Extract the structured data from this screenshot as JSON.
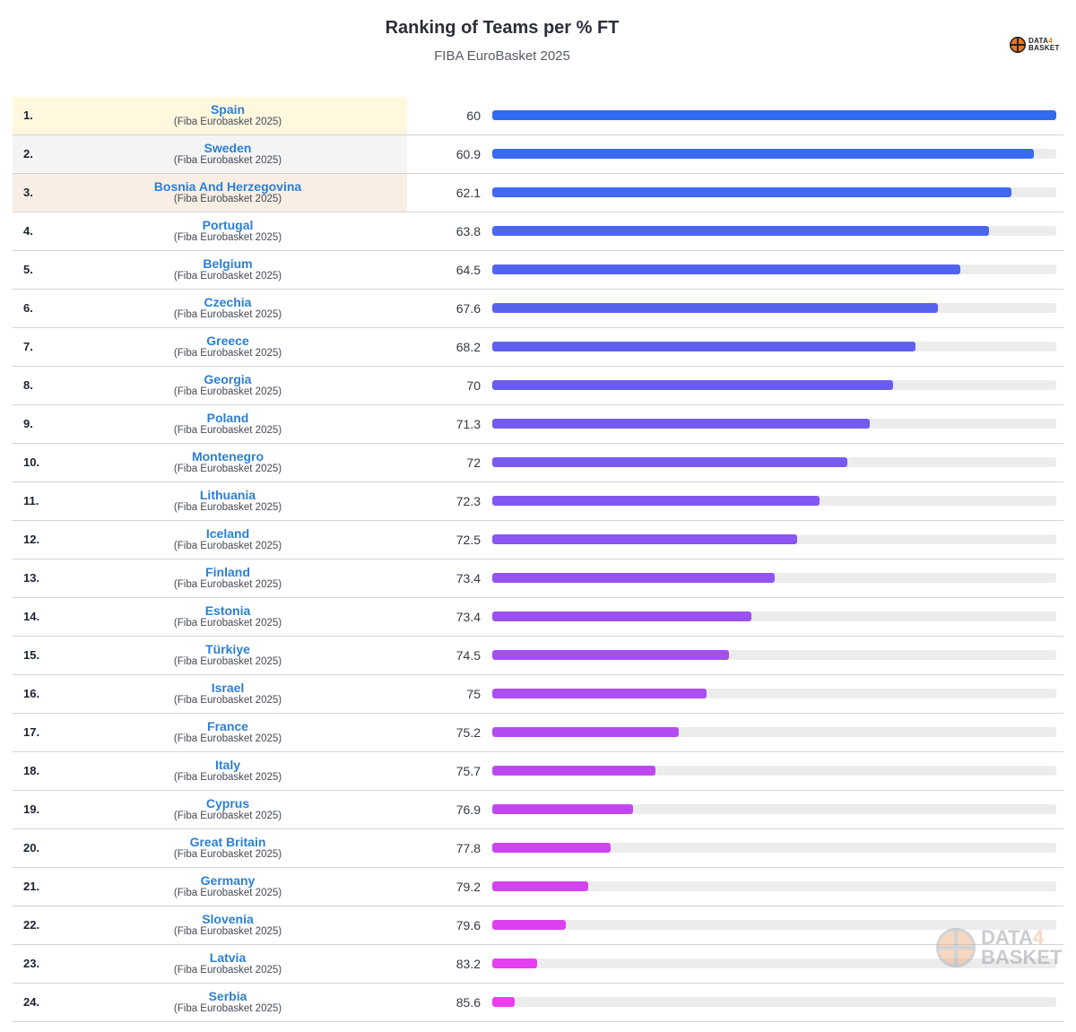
{
  "title": "Ranking of Teams per % FT",
  "subtitle": "FIBA EuroBasket 2025",
  "brand": {
    "line1": "DATA",
    "four": "4",
    "line2": "BASKET"
  },
  "colors": {
    "start": "#2f6cf0",
    "end": "#ee3cf0",
    "gold": "#fff8df",
    "silver": "#f4f4f4",
    "bronze": "#f8eee4",
    "track": "#ececec",
    "team_text": "#2b7fd6"
  },
  "chart_data": {
    "type": "bar",
    "orientation": "horizontal",
    "title": "Ranking of Teams per % FT",
    "subtitle": "FIBA EuroBasket 2025",
    "metric": "% FT",
    "rows": [
      {
        "rank": "1.",
        "team": "Spain",
        "competition": "(Fiba Eurobasket 2025)",
        "value": 60,
        "bar_fill": 1.0
      },
      {
        "rank": "2.",
        "team": "Sweden",
        "competition": "(Fiba Eurobasket 2025)",
        "value": 60.9,
        "bar_fill": 0.96
      },
      {
        "rank": "3.",
        "team": "Bosnia And Herzegovina",
        "competition": "(Fiba Eurobasket 2025)",
        "value": 62.1,
        "bar_fill": 0.92
      },
      {
        "rank": "4.",
        "team": "Portugal",
        "competition": "(Fiba Eurobasket 2025)",
        "value": 63.8,
        "bar_fill": 0.88
      },
      {
        "rank": "5.",
        "team": "Belgium",
        "competition": "(Fiba Eurobasket 2025)",
        "value": 64.5,
        "bar_fill": 0.83
      },
      {
        "rank": "6.",
        "team": "Czechia",
        "competition": "(Fiba Eurobasket 2025)",
        "value": 67.6,
        "bar_fill": 0.79
      },
      {
        "rank": "7.",
        "team": "Greece",
        "competition": "(Fiba Eurobasket 2025)",
        "value": 68.2,
        "bar_fill": 0.75
      },
      {
        "rank": "8.",
        "team": "Georgia",
        "competition": "(Fiba Eurobasket 2025)",
        "value": 70,
        "bar_fill": 0.71
      },
      {
        "rank": "9.",
        "team": "Poland",
        "competition": "(Fiba Eurobasket 2025)",
        "value": 71.3,
        "bar_fill": 0.67
      },
      {
        "rank": "10.",
        "team": "Montenegro",
        "competition": "(Fiba Eurobasket 2025)",
        "value": 72,
        "bar_fill": 0.63
      },
      {
        "rank": "11.",
        "team": "Lithuania",
        "competition": "(Fiba Eurobasket 2025)",
        "value": 72.3,
        "bar_fill": 0.58
      },
      {
        "rank": "12.",
        "team": "Iceland",
        "competition": "(Fiba Eurobasket 2025)",
        "value": 72.5,
        "bar_fill": 0.54
      },
      {
        "rank": "13.",
        "team": "Finland",
        "competition": "(Fiba Eurobasket 2025)",
        "value": 73.4,
        "bar_fill": 0.5
      },
      {
        "rank": "14.",
        "team": "Estonia",
        "competition": "(Fiba Eurobasket 2025)",
        "value": 73.4,
        "bar_fill": 0.46
      },
      {
        "rank": "15.",
        "team": "Türkiye",
        "competition": "(Fiba Eurobasket 2025)",
        "value": 74.5,
        "bar_fill": 0.42
      },
      {
        "rank": "16.",
        "team": "Israel",
        "competition": "(Fiba Eurobasket 2025)",
        "value": 75,
        "bar_fill": 0.38
      },
      {
        "rank": "17.",
        "team": "France",
        "competition": "(Fiba Eurobasket 2025)",
        "value": 75.2,
        "bar_fill": 0.33
      },
      {
        "rank": "18.",
        "team": "Italy",
        "competition": "(Fiba Eurobasket 2025)",
        "value": 75.7,
        "bar_fill": 0.29
      },
      {
        "rank": "19.",
        "team": "Cyprus",
        "competition": "(Fiba Eurobasket 2025)",
        "value": 76.9,
        "bar_fill": 0.25
      },
      {
        "rank": "20.",
        "team": "Great Britain",
        "competition": "(Fiba Eurobasket 2025)",
        "value": 77.8,
        "bar_fill": 0.21
      },
      {
        "rank": "21.",
        "team": "Germany",
        "competition": "(Fiba Eurobasket 2025)",
        "value": 79.2,
        "bar_fill": 0.17
      },
      {
        "rank": "22.",
        "team": "Slovenia",
        "competition": "(Fiba Eurobasket 2025)",
        "value": 79.6,
        "bar_fill": 0.13
      },
      {
        "rank": "23.",
        "team": "Latvia",
        "competition": "(Fiba Eurobasket 2025)",
        "value": 83.2,
        "bar_fill": 0.08
      },
      {
        "rank": "24.",
        "team": "Serbia",
        "competition": "(Fiba Eurobasket 2025)",
        "value": 85.6,
        "bar_fill": 0.04
      }
    ]
  }
}
